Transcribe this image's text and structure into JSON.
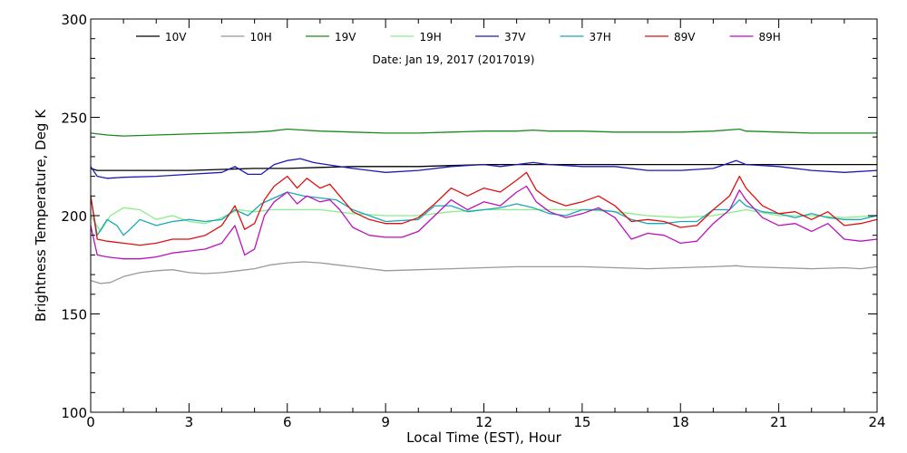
{
  "chart_data": {
    "type": "line",
    "date_label": "Date: Jan 19, 2017 (2017019)",
    "xlabel": "Local Time (EST), Hour",
    "ylabel": "Brightness Temperature, Deg K",
    "xlim": [
      0,
      24
    ],
    "ylim": [
      100,
      300
    ],
    "x_ticks": [
      0,
      3,
      6,
      9,
      12,
      15,
      18,
      21,
      24
    ],
    "y_ticks": [
      100,
      150,
      200,
      250,
      300
    ],
    "grid": false,
    "legend_position": "top",
    "series": [
      {
        "name": "10V",
        "color": "#000000",
        "x": [
          0,
          0.2,
          0.5,
          1,
          2,
          3,
          4,
          5,
          6,
          7,
          8,
          9,
          10,
          11,
          12,
          13,
          14,
          15,
          16,
          17,
          18,
          19,
          20,
          21,
          22,
          23,
          24
        ],
        "y": [
          224,
          223,
          223,
          223,
          223,
          223,
          223.5,
          224,
          224,
          224.5,
          225,
          225,
          225,
          225.5,
          226,
          226,
          226,
          226,
          226,
          226,
          226,
          226,
          226,
          226,
          226,
          226,
          226
        ]
      },
      {
        "name": "10H",
        "color": "#999999",
        "x": [
          0,
          0.3,
          0.6,
          1,
          1.5,
          2,
          2.5,
          3,
          3.5,
          4,
          4.5,
          5,
          5.5,
          6,
          6.5,
          7,
          7.5,
          8,
          8.5,
          9,
          10,
          11,
          12,
          13,
          14,
          15,
          16,
          17,
          18,
          19,
          19.7,
          20,
          21,
          22,
          23,
          23.5,
          24
        ],
        "y": [
          167,
          165.5,
          166,
          169,
          171,
          172,
          172.5,
          171,
          170.5,
          171,
          172,
          173,
          175,
          176,
          176.5,
          176,
          175,
          174,
          173,
          172,
          172.5,
          173,
          173.5,
          174,
          174,
          174,
          173.5,
          173,
          173.5,
          174,
          174.5,
          174,
          173.5,
          173,
          173.5,
          173,
          174
        ]
      },
      {
        "name": "19V",
        "color": "#1a8a1a",
        "x": [
          0,
          0.5,
          1,
          2,
          3,
          4,
          5,
          5.5,
          6,
          6.5,
          7,
          8,
          9,
          10,
          11,
          12,
          13,
          13.5,
          14,
          15,
          16,
          17,
          18,
          19,
          19.8,
          20,
          21,
          22,
          23,
          24
        ],
        "y": [
          242,
          241,
          240.5,
          241,
          241.5,
          242,
          242.5,
          243,
          244,
          243.5,
          243,
          242.5,
          242,
          242,
          242.5,
          243,
          243,
          243.5,
          243,
          243,
          242.5,
          242.5,
          242.5,
          243,
          244,
          243,
          242.5,
          242,
          242,
          242
        ]
      },
      {
        "name": "19H",
        "color": "#88ee88",
        "x": [
          0,
          0.3,
          0.6,
          1,
          1.5,
          2,
          2.5,
          3,
          3.5,
          4,
          4.5,
          5,
          5.5,
          6,
          7,
          8,
          9,
          10,
          11,
          12,
          13,
          14,
          15,
          16,
          17,
          18,
          19,
          20,
          21,
          22,
          23,
          24
        ],
        "y": [
          200,
          192,
          200,
          204,
          203,
          198,
          200,
          197,
          196,
          199,
          203,
          202,
          203,
          203,
          203,
          201,
          200,
          200,
          202,
          203,
          203,
          203,
          203,
          202,
          200,
          199,
          200,
          203,
          200,
          200,
          199,
          200
        ]
      },
      {
        "name": "37V",
        "color": "#1a1ab8",
        "x": [
          0,
          0.2,
          0.5,
          1,
          2,
          3,
          4,
          4.4,
          4.8,
          5.2,
          5.6,
          6,
          6.4,
          6.8,
          7.2,
          7.6,
          8,
          8.5,
          9,
          10,
          11,
          12,
          12.5,
          13,
          13.5,
          14,
          15,
          16,
          17,
          18,
          19,
          19.7,
          20,
          21,
          22,
          23,
          24
        ],
        "y": [
          225,
          220,
          219,
          219.5,
          220,
          221,
          222,
          225,
          221,
          221,
          226,
          228,
          229,
          227,
          226,
          225,
          224,
          223,
          222,
          223,
          225,
          226,
          225,
          226,
          227,
          226,
          225,
          225,
          223,
          223,
          224,
          228,
          226,
          225,
          223,
          222,
          223
        ]
      },
      {
        "name": "37H",
        "color": "#1aa8b8",
        "x": [
          0,
          0.2,
          0.5,
          0.8,
          1,
          1.2,
          1.5,
          2,
          2.5,
          3,
          3.5,
          4,
          4.4,
          4.8,
          5.2,
          5.6,
          6,
          6.5,
          7,
          7.5,
          8,
          8.5,
          9,
          10,
          10.5,
          11,
          11.5,
          12,
          12.5,
          13,
          13.5,
          14,
          14.5,
          15,
          15.5,
          16,
          16.5,
          17,
          17.5,
          18,
          18.5,
          19,
          19.5,
          19.8,
          20,
          20.5,
          21,
          21.5,
          22,
          22.5,
          23,
          23.5,
          24
        ],
        "y": [
          210,
          190,
          198,
          195,
          190,
          193,
          198,
          195,
          197,
          198,
          197,
          198,
          203,
          200,
          206,
          209,
          212,
          210,
          209,
          208,
          203,
          200,
          197,
          198,
          205,
          205,
          202,
          203,
          204,
          206,
          204,
          201,
          200,
          203,
          203,
          202,
          198,
          196,
          196,
          197,
          197,
          203,
          203,
          208,
          205,
          202,
          201,
          199,
          201,
          199,
          198,
          198,
          200
        ]
      },
      {
        "name": "89V",
        "color": "#dd1111",
        "x": [
          0,
          0.2,
          0.5,
          1,
          1.5,
          2,
          2.5,
          3,
          3.5,
          4,
          4.4,
          4.7,
          5,
          5.3,
          5.6,
          6,
          6.3,
          6.6,
          7,
          7.3,
          7.6,
          8,
          8.5,
          9,
          9.5,
          10,
          10.5,
          11,
          11.5,
          12,
          12.5,
          13,
          13.3,
          13.6,
          14,
          14.5,
          15,
          15.5,
          16,
          16.5,
          17,
          17.5,
          18,
          18.5,
          19,
          19.5,
          19.8,
          20,
          20.5,
          21,
          21.5,
          22,
          22.5,
          23,
          23.5,
          24
        ],
        "y": [
          210,
          188,
          187,
          186,
          185,
          186,
          188,
          188,
          190,
          195,
          205,
          193,
          196,
          208,
          215,
          220,
          214,
          219,
          214,
          216,
          210,
          202,
          198,
          196,
          196,
          199,
          206,
          214,
          210,
          214,
          212,
          218,
          222,
          213,
          208,
          205,
          207,
          210,
          205,
          197,
          198,
          197,
          194,
          195,
          203,
          210,
          220,
          214,
          205,
          201,
          202,
          198,
          202,
          195,
          196,
          198
        ]
      },
      {
        "name": "89H",
        "color": "#bb11bb",
        "x": [
          0,
          0.2,
          0.5,
          1,
          1.5,
          2,
          2.5,
          3,
          3.5,
          4,
          4.4,
          4.7,
          5,
          5.3,
          5.6,
          6,
          6.3,
          6.6,
          7,
          7.3,
          7.6,
          8,
          8.5,
          9,
          9.5,
          10,
          10.5,
          11,
          11.5,
          12,
          12.5,
          13,
          13.3,
          13.6,
          14,
          14.5,
          15,
          15.5,
          16,
          16.5,
          17,
          17.5,
          18,
          18.5,
          19,
          19.5,
          19.8,
          20,
          20.5,
          21,
          21.5,
          22,
          22.5,
          23,
          23.5,
          24
        ],
        "y": [
          195,
          180,
          179,
          178,
          178,
          179,
          181,
          182,
          183,
          186,
          195,
          180,
          183,
          200,
          207,
          212,
          206,
          210,
          207,
          208,
          203,
          194,
          190,
          189,
          189,
          192,
          200,
          208,
          203,
          207,
          205,
          212,
          215,
          207,
          202,
          199,
          201,
          204,
          199,
          188,
          191,
          190,
          186,
          187,
          196,
          203,
          213,
          208,
          199,
          195,
          196,
          192,
          196,
          188,
          187,
          188
        ]
      }
    ]
  }
}
